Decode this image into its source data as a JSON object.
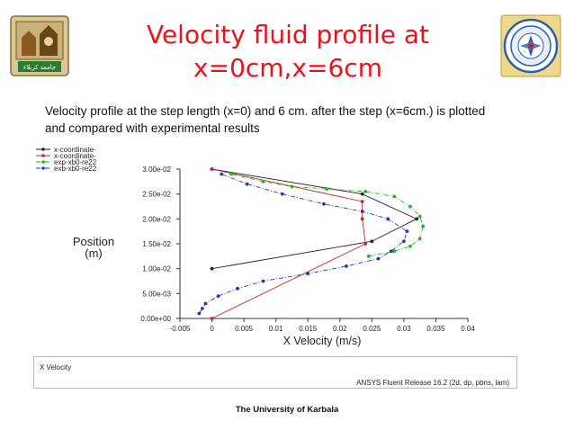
{
  "header": {
    "title_line1": "Velocity fluid profile at",
    "title_line2": "x=0cm,x=6cm",
    "left_logo_text": "جامعة كربلاء"
  },
  "description": {
    "line1": "Velocity profile at the step length (x=0) and 6 cm. after the step (x=6cm.) is plotted",
    "line2": "and compared with experimental results"
  },
  "chart_data": {
    "type": "line",
    "xlabel": "X Velocity (m/s)",
    "ylabel": "Position (m)",
    "xlim": [
      -0.005,
      0.04
    ],
    "ylim": [
      0,
      0.03
    ],
    "x_ticks": [
      "-0.005",
      "0",
      "0.005",
      "0.01",
      "0.015",
      "0.02",
      "0.025",
      "0.03",
      "0.035",
      "0.04"
    ],
    "y_ticks": [
      "0.00e+00",
      "5.00e-03",
      "1.00e-02",
      "1.50e-02",
      "2.00e-02",
      "2.50e-02",
      "3.00e-02"
    ],
    "legend_position": "top-left",
    "grid": false,
    "series": [
      {
        "name": "x-coordinate-",
        "color": "#222222",
        "dash": "solid",
        "marker": "circle",
        "x": [
          0,
          0.025,
          0.032,
          0.0235,
          0
        ],
        "y": [
          0.01,
          0.0155,
          0.02,
          0.025,
          0.03
        ]
      },
      {
        "name": "x-coordinate-",
        "color": "#c0282d",
        "dash": "solid",
        "marker": "circle",
        "x": [
          0,
          0.024,
          0.0235,
          0.0235,
          0
        ],
        "y": [
          0,
          0.015,
          0.02,
          0.0235,
          0.03
        ]
      },
      {
        "name": "exp-xb0-re22",
        "color": "#22b422",
        "dash": "dashdot",
        "marker": "circle",
        "x": [
          0.0245,
          0.0285,
          0.031,
          0.0325,
          0.033,
          0.0325,
          0.031,
          0.0285,
          0.024,
          0.018,
          0.0125,
          0.008,
          0.003
        ],
        "y": [
          0.0125,
          0.0135,
          0.0145,
          0.016,
          0.0185,
          0.0205,
          0.0225,
          0.0245,
          0.0255,
          0.026,
          0.0265,
          0.0275,
          0.029
        ]
      },
      {
        "name": "exb-xb0-re22",
        "color": "#2a36b2",
        "dash": "dashdot",
        "marker": "circle",
        "x": [
          -0.002,
          -0.0015,
          -0.001,
          0.001,
          0.004,
          0.008,
          0.015,
          0.021,
          0.026,
          0.028,
          0.03,
          0.0305,
          0.0275,
          0.0235,
          0.0175,
          0.011,
          0.0055,
          0.0015
        ],
        "y": [
          0.001,
          0.002,
          0.003,
          0.0045,
          0.006,
          0.0075,
          0.009,
          0.0105,
          0.012,
          0.0135,
          0.0155,
          0.0175,
          0.02,
          0.0215,
          0.023,
          0.025,
          0.027,
          0.029
        ]
      }
    ]
  },
  "footer": {
    "left_label": "X Velocity",
    "right_label": "ANSYS Fluent Release 16.2 (2d, dp, pbns, lam)",
    "university": "The University of Karbala"
  }
}
